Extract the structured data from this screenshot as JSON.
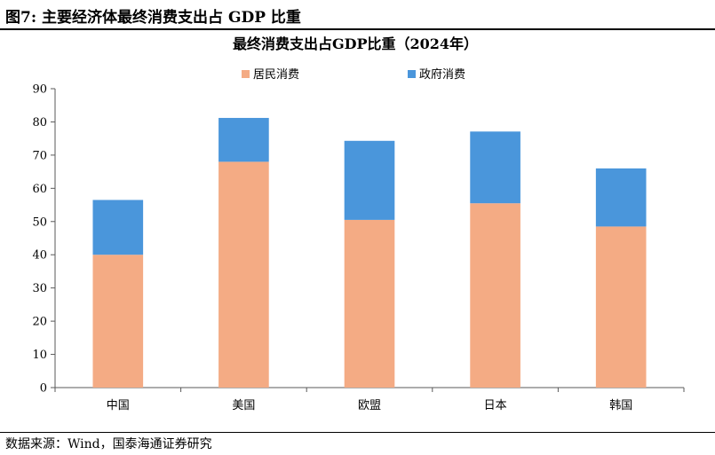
{
  "figure": {
    "title": "图7:  主要经济体最终消费支出占 GDP 比重",
    "source": "数据来源：Wind，国泰海通证券研究"
  },
  "chart_data": {
    "type": "bar",
    "stacked": true,
    "title": "最终消费支出占GDP比重（2024年）",
    "categories": [
      "中国",
      "美国",
      "欧盟",
      "日本",
      "韩国"
    ],
    "series": [
      {
        "name": "居民消费",
        "color": "#F4AB84",
        "values": [
          40.0,
          68.0,
          50.5,
          55.5,
          48.5
        ]
      },
      {
        "name": "政府消费",
        "color": "#4A96DB",
        "values": [
          16.5,
          13.2,
          23.8,
          21.6,
          17.5
        ]
      }
    ],
    "ylim": [
      0,
      90
    ],
    "yticks": [
      0,
      10,
      20,
      30,
      40,
      50,
      60,
      70,
      80,
      90
    ],
    "xlabel": "",
    "ylabel": "",
    "legend_position": "top-center",
    "grid": false
  }
}
